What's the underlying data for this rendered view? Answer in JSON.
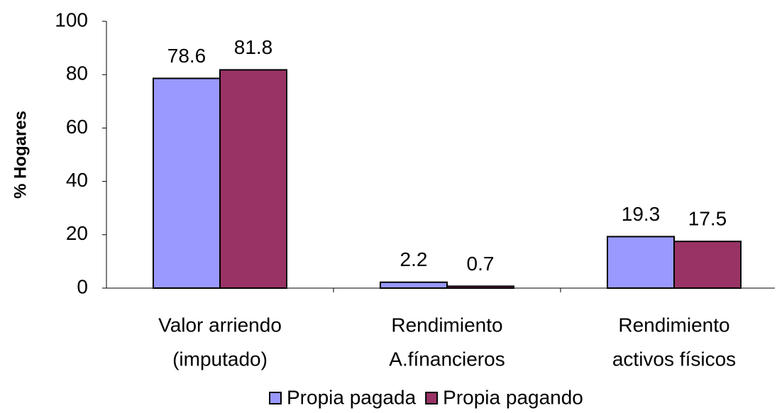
{
  "chart_data": {
    "type": "bar",
    "y_label": "% Hogares",
    "categories": [
      [
        "Valor arriendo",
        "(imputado)"
      ],
      [
        "Rendimiento",
        "A.fínancieros"
      ],
      [
        "Rendimiento",
        "activos físicos"
      ]
    ],
    "series": [
      {
        "name": "Propia pagada",
        "color": "#9999ff",
        "values": [
          78.6,
          2.2,
          19.3
        ]
      },
      {
        "name": "Propia pagando",
        "color": "#993366",
        "values": [
          81.8,
          0.7,
          17.5
        ]
      }
    ],
    "ylim": [
      0,
      100
    ],
    "yticks": [
      0,
      20,
      40,
      60,
      80,
      100
    ],
    "legend": "bottom"
  }
}
